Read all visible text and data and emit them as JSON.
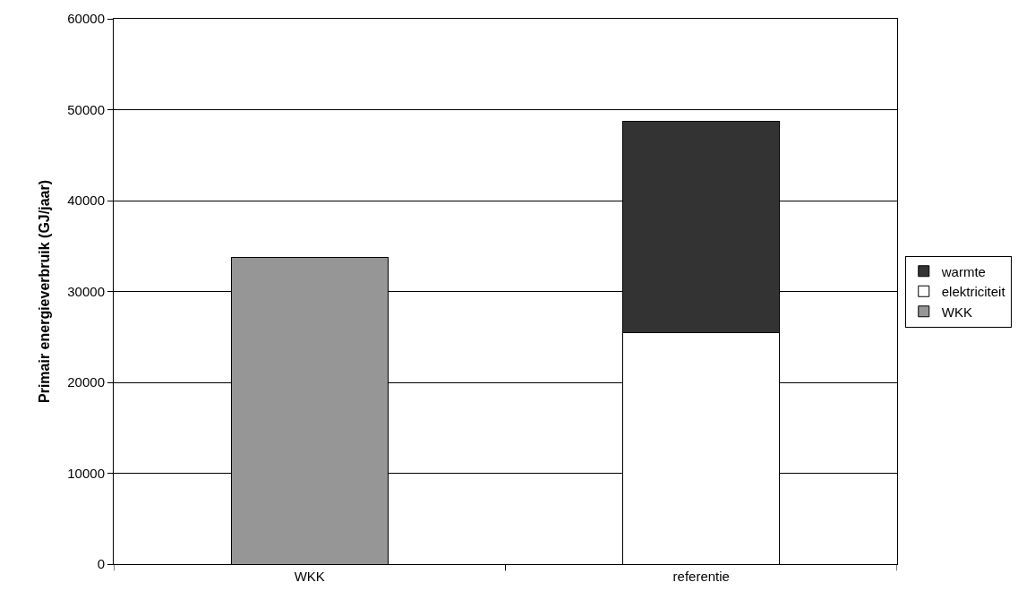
{
  "chart_data": {
    "type": "bar",
    "stacked": true,
    "ylabel": "Primair energieverbruik (GJ/jaar)",
    "categories": [
      "WKK",
      "referentie"
    ],
    "series": [
      {
        "name": "WKK",
        "color": "#969696",
        "values": [
          33700,
          null
        ]
      },
      {
        "name": "elektriciteit",
        "color": "#ffffff",
        "values": [
          null,
          25500
        ]
      },
      {
        "name": "warmte",
        "color": "#333333",
        "values": [
          null,
          23200
        ]
      }
    ],
    "ylim": [
      0,
      60000
    ],
    "yticks": [
      0,
      10000,
      20000,
      30000,
      40000,
      50000,
      60000
    ],
    "grid": "y",
    "legend": "right"
  }
}
